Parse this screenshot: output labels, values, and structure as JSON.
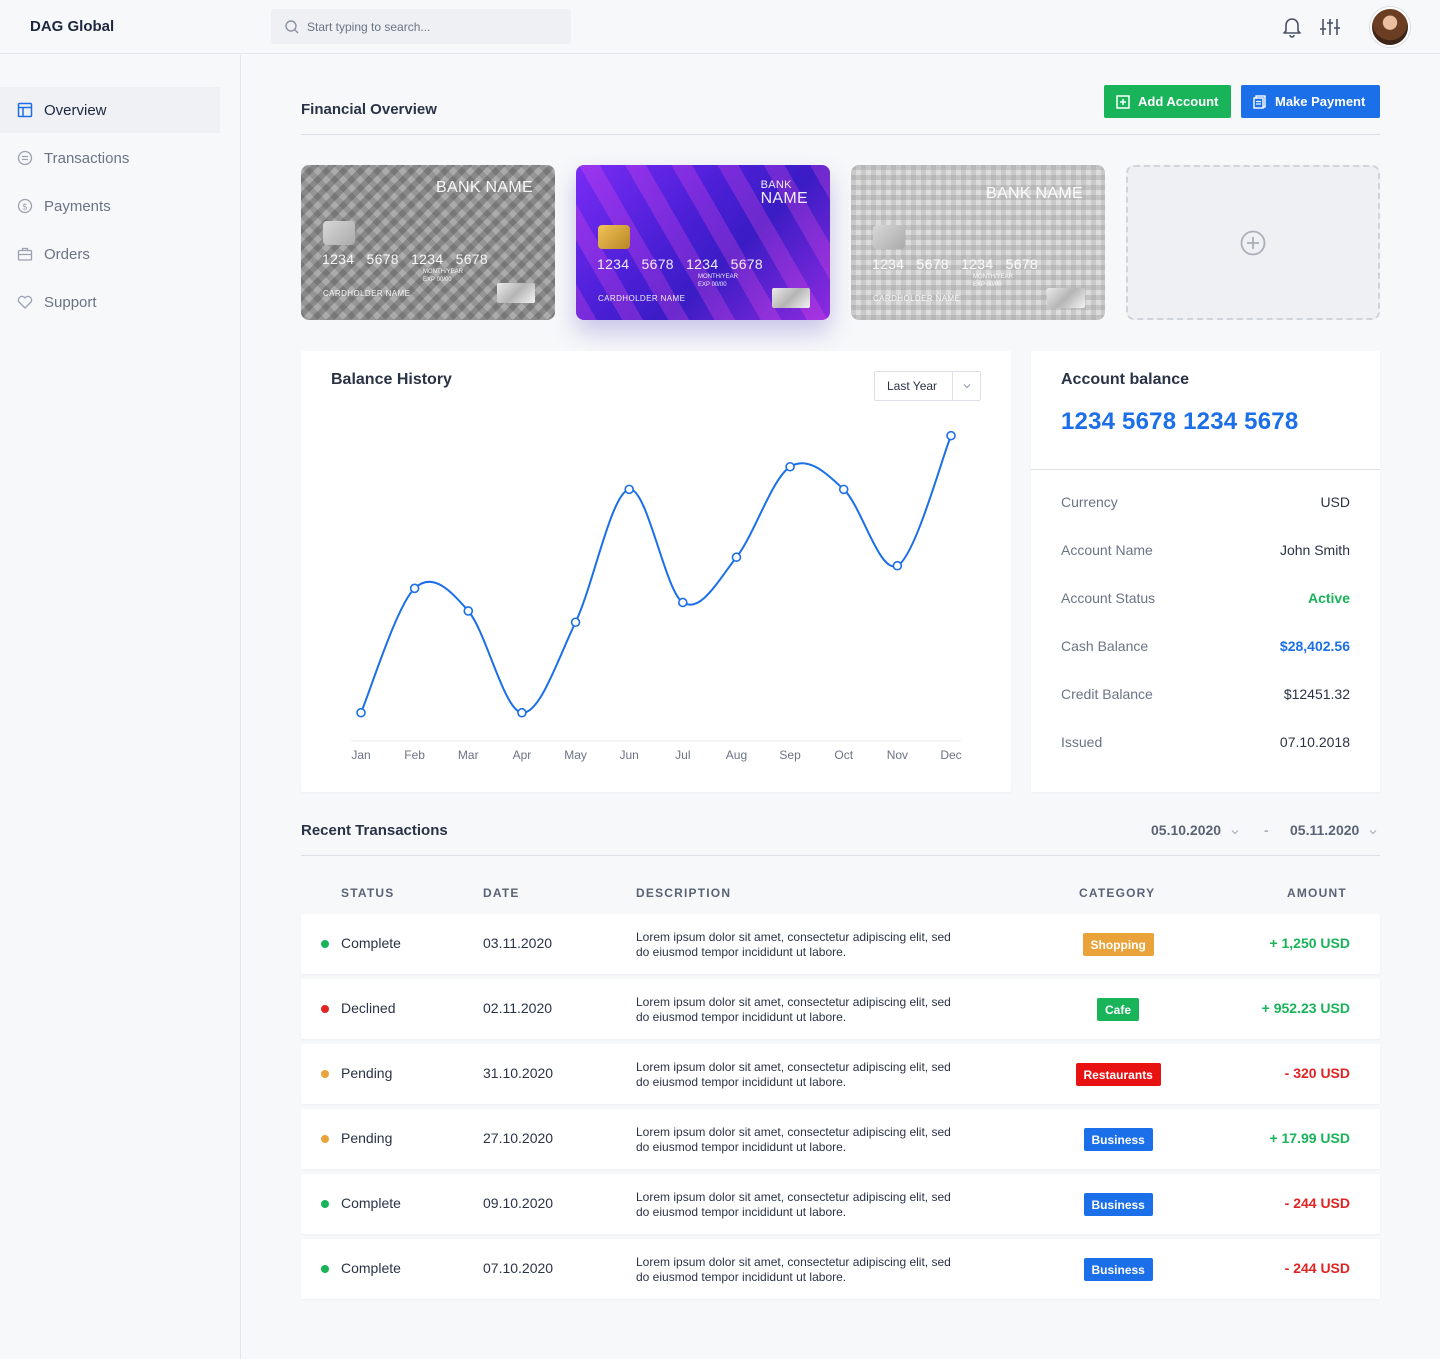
{
  "app": {
    "brand": "DAG Global"
  },
  "search": {
    "placeholder": "Start typing to search..."
  },
  "sidebar": {
    "items": [
      {
        "label": "Overview",
        "icon": "layout-icon",
        "active": true
      },
      {
        "label": "Transactions",
        "icon": "currency-icon",
        "active": false
      },
      {
        "label": "Payments",
        "icon": "dollar-icon",
        "active": false
      },
      {
        "label": "Orders",
        "icon": "briefcase-icon",
        "active": false
      },
      {
        "label": "Support",
        "icon": "heart-hand-icon",
        "active": false
      }
    ]
  },
  "header": {
    "title": "Financial Overview",
    "add_account": "Add Account",
    "make_payment": "Make Payment"
  },
  "cards": [
    {
      "bank": "BANK NAME",
      "number": "1234 5678 1234 5678",
      "exp_label": "MONTH/YEAR",
      "exp_prefix": "EXP",
      "exp_value": "00/00",
      "holder": "CARDHOLDER NAME"
    },
    {
      "bank_line1": "BANK",
      "bank_line2": "NAME",
      "number": "1234 5678 1234 5678",
      "exp_label": "MONTH/YEAR",
      "exp_prefix": "EXP",
      "exp_value": "00/00",
      "holder": "CARDHOLDER NAME"
    },
    {
      "bank": "BANK NAME",
      "number": "1234 5678 1234 5678",
      "exp_label": "MONTH/YEAR",
      "exp_prefix": "EXP",
      "exp_value": "00/00",
      "holder": "CARDHOLDER NAME"
    }
  ],
  "balance_history": {
    "title": "Balance History",
    "range": "Last Year"
  },
  "chart_data": {
    "type": "line",
    "title": "Balance History",
    "categories": [
      "Jan",
      "Feb",
      "Mar",
      "Apr",
      "May",
      "Jun",
      "Jul",
      "Aug",
      "Sep",
      "Oct",
      "Nov",
      "Dec"
    ],
    "series": [
      {
        "values": [
          10,
          54,
          46,
          10,
          42,
          89,
          49,
          65,
          97,
          89,
          62,
          108
        ]
      }
    ],
    "ylim": [
      0,
      110
    ],
    "grid": false,
    "color": "#1b6fe8"
  },
  "account": {
    "title": "Account balance",
    "number": "1234 5678 1234 5678",
    "fields": [
      {
        "label": "Currency",
        "value": "USD",
        "color": "#2a3346"
      },
      {
        "label": "Account Name",
        "value": "John Smith",
        "color": "#2a3346"
      },
      {
        "label": "Account Status",
        "value": "Active",
        "color": "#19b35a"
      },
      {
        "label": "Cash Balance",
        "value": "$28,402.56",
        "color": "#1b6fe8"
      },
      {
        "label": "Credit Balance",
        "value": "$12451.32",
        "color": "#2a3346"
      },
      {
        "label": "Issued",
        "value": "07.10.2018",
        "color": "#2a3346"
      }
    ]
  },
  "transactions": {
    "title": "Recent Transactions",
    "date_from": "05.10.2020",
    "date_sep": "-",
    "date_to": "05.11.2020",
    "headers": {
      "status": "STATUS",
      "date": "DATE",
      "description": "DESCRIPTION",
      "category": "CATEGORY",
      "amount": "AMOUNT"
    },
    "rows": [
      {
        "status": "Complete",
        "status_color": "#19b35a",
        "date": "03.11.2020",
        "desc1": "Lorem ipsum dolor sit amet, consectetur adipiscing elit, sed",
        "desc2": "do eiusmod tempor incididunt ut labore.",
        "category": "Shopping",
        "category_color": "#eaa23a",
        "amount": "+ 1,250 USD",
        "amount_color": "#19b35a"
      },
      {
        "status": "Declined",
        "status_color": "#e02424",
        "date": "02.11.2020",
        "desc1": "Lorem ipsum dolor sit amet, consectetur adipiscing elit, sed",
        "desc2": "do eiusmod tempor incididunt ut labore.",
        "category": "Cafe",
        "category_color": "#19b35a",
        "amount": "+ 952.23 USD",
        "amount_color": "#19b35a"
      },
      {
        "status": "Pending",
        "status_color": "#eaa23a",
        "date": "31.10.2020",
        "desc1": "Lorem ipsum dolor sit amet, consectetur adipiscing elit, sed",
        "desc2": "do eiusmod tempor incididunt ut labore.",
        "category": "Restaurants",
        "category_color": "#e81212",
        "amount": "- 320 USD",
        "amount_color": "#e02424"
      },
      {
        "status": "Pending",
        "status_color": "#eaa23a",
        "date": "27.10.2020",
        "desc1": "Lorem ipsum dolor sit amet, consectetur adipiscing elit, sed",
        "desc2": "do eiusmod tempor incididunt ut labore.",
        "category": "Business",
        "category_color": "#1b6fe8",
        "amount": "+ 17.99 USD",
        "amount_color": "#19b35a"
      },
      {
        "status": "Complete",
        "status_color": "#19b35a",
        "date": "09.10.2020",
        "desc1": "Lorem ipsum dolor sit amet, consectetur adipiscing elit, sed",
        "desc2": "do eiusmod tempor incididunt ut labore.",
        "category": "Business",
        "category_color": "#1b6fe8",
        "amount": "- 244 USD",
        "amount_color": "#e02424"
      },
      {
        "status": "Complete",
        "status_color": "#19b35a",
        "date": "07.10.2020",
        "desc1": "Lorem ipsum dolor sit amet, consectetur adipiscing elit, sed",
        "desc2": "do eiusmod tempor incididunt ut labore.",
        "category": "Business",
        "category_color": "#1b6fe8",
        "amount": "- 244 USD",
        "amount_color": "#e02424"
      }
    ]
  }
}
